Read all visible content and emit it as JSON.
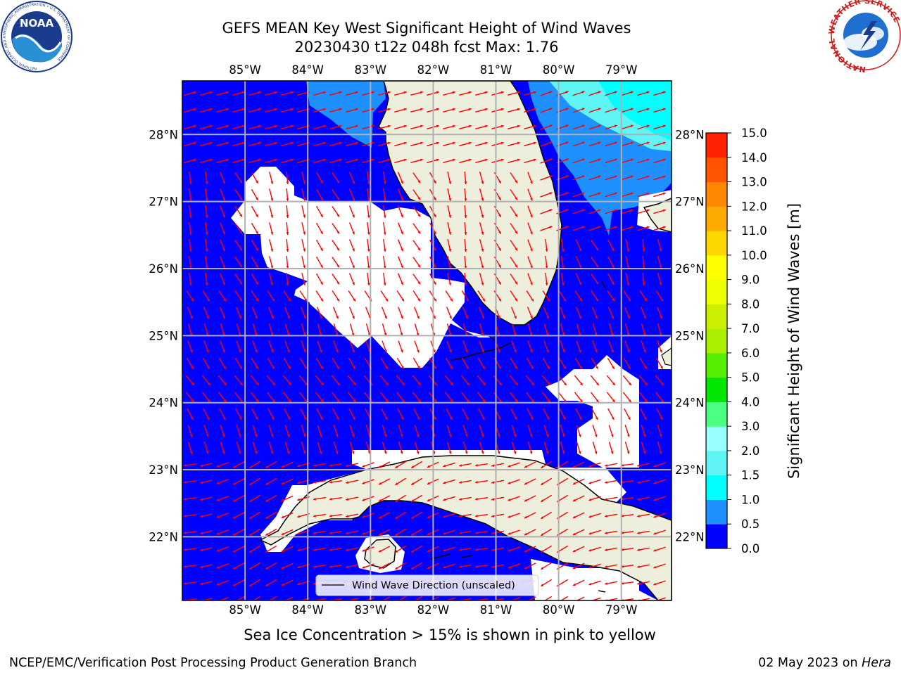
{
  "header": {
    "title": "GEFS MEAN Key West Significant Height of Wind Waves",
    "subtitle": "20230430 t12z 048h fcst   Max: 1.76",
    "logo_left": "NOAA",
    "logo_left_ring": "NATIONAL OCEANIC AND ATMOSPHERIC ADMINISTRATION • U.S. DEPARTMENT OF COMMERCE",
    "logo_right_ring": "NATIONAL WEATHER SERVICE"
  },
  "map": {
    "lon_labels": [
      "85°W",
      "84°W",
      "83°W",
      "82°W",
      "81°W",
      "80°W",
      "79°W"
    ],
    "lon_values": [
      -85,
      -84,
      -83,
      -82,
      -81,
      -80,
      -79
    ],
    "lat_labels": [
      "28°N",
      "27°N",
      "26°N",
      "25°N",
      "24°N",
      "23°N",
      "22°N"
    ],
    "lat_values": [
      28,
      27,
      26,
      25,
      24,
      23,
      22
    ],
    "lon_range": [
      -86.0,
      -78.2
    ],
    "lat_range": [
      21.05,
      28.8
    ],
    "legend_label": "Wind Wave Direction (unscaled)"
  },
  "colorbar": {
    "label": "Significant Height of Wind Waves [m]",
    "tick_labels": [
      "0.0",
      "0.5",
      "1.0",
      "1.5",
      "2.0",
      "3.0",
      "4.0",
      "5.0",
      "6.0",
      "7.0",
      "8.0",
      "9.0",
      "10.0",
      "11.0",
      "12.0",
      "13.0",
      "14.0",
      "15.0"
    ],
    "colors": [
      "#0000ff",
      "#1e90ff",
      "#00ffff",
      "#5ff5f5",
      "#9affff",
      "#4dff80",
      "#00e600",
      "#55ee00",
      "#aaee00",
      "#ccee00",
      "#eeff00",
      "#ffff00",
      "#ffd700",
      "#ffaa00",
      "#ff8800",
      "#ff5500",
      "#ff2200",
      "#ff0000"
    ]
  },
  "colors": {
    "sea_low": "#0000ff",
    "sea_mid": "#1e90ff",
    "sea_high": "#00ffff",
    "land": "#eeeedd",
    "arrows": "#ff0000",
    "grid": "#b0b0b0"
  },
  "footer": {
    "note": "Sea Ice Concentration > 15% is shown in pink to yellow",
    "credit": "NCEP/EMC/Verification Post Processing Product Generation Branch",
    "date": "02 May 2023 on",
    "machine": "Hera"
  }
}
